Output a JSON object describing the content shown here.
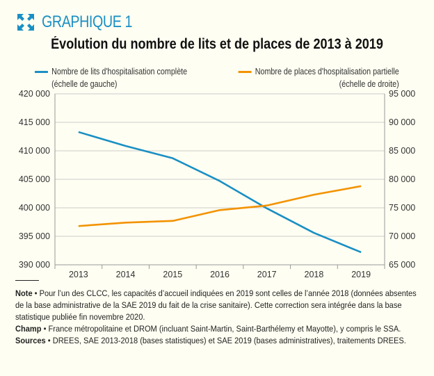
{
  "header": {
    "label": "GRAPHIQUE 1",
    "icon": "expand-icon"
  },
  "chart_data": {
    "type": "line",
    "title": "Évolution du nombre de lits et de places de 2013 à 2019",
    "categories": [
      "2013",
      "2014",
      "2015",
      "2016",
      "2017",
      "2018",
      "2019"
    ],
    "series": [
      {
        "name": "Nombre de lits d'hospitalisation complète",
        "axis_note": "(échelle de gauche)",
        "axis": "left",
        "color": "#1a8fc4",
        "values": [
          413300,
          410850,
          408700,
          404700,
          399900,
          395600,
          392200
        ]
      },
      {
        "name": "Nombre de places d'hospitalisation partielle",
        "axis_note": "(échelle de droite)",
        "axis": "right",
        "color": "#f39200",
        "values": [
          71800,
          72400,
          72700,
          74600,
          75400,
          77300,
          78800
        ]
      }
    ],
    "left_axis": {
      "ylim": [
        390000,
        420000
      ],
      "ticks": [
        "390 000",
        "395 000",
        "400 000",
        "405 000",
        "410 000",
        "415 000",
        "420 000"
      ]
    },
    "right_axis": {
      "ylim": [
        65000,
        95000
      ],
      "ticks": [
        "65 000",
        "70 000",
        "75 000",
        "80 000",
        "85 000",
        "90 000",
        "95 000"
      ]
    },
    "grid": true,
    "legend": "top"
  },
  "notes": {
    "note_label": "Note",
    "note": " • Pour l’un des CLCC, les capacités d’accueil indiquées en 2019 sont celles de l’année 2018 (données absentes de la base administrative de la SAE 2019 du fait de la crise sanitaire). Cette correction sera intégrée dans la base statistique publiée fin novembre 2020.",
    "champ_label": "Champ",
    "champ": " • France métropolitaine et DROM (incluant Saint-Martin, Saint-Barthélemy et Mayotte), y compris le SSA.",
    "sources_label": "Sources",
    "sources": " • DREES, SAE 2013-2018 (bases statistiques) et SAE 2019 (bases administratives), traitements DREES."
  }
}
